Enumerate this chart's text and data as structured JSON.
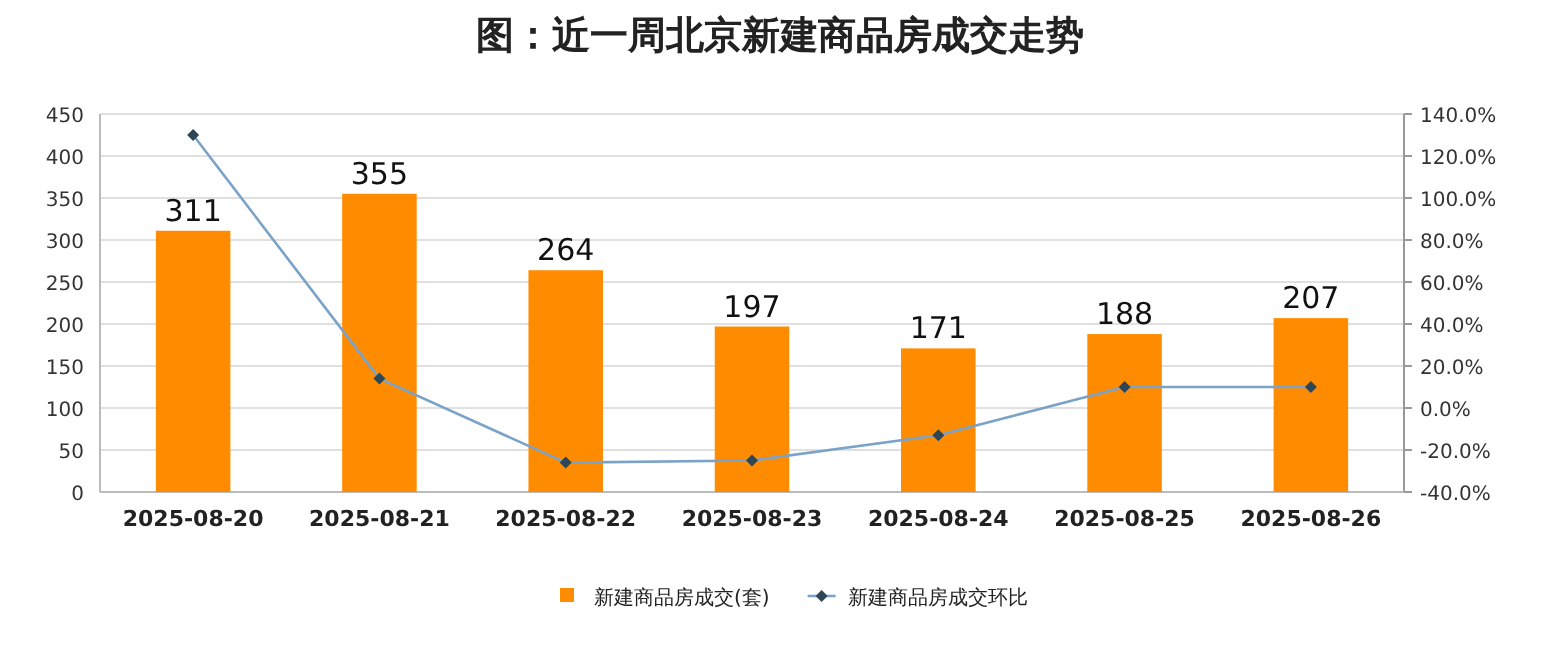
{
  "chart_data": {
    "type": "bar",
    "title": "图：近一周北京新建商品房成交走势",
    "categories": [
      "2025-08-20",
      "2025-08-21",
      "2025-08-22",
      "2025-08-23",
      "2025-08-24",
      "2025-08-25",
      "2025-08-26"
    ],
    "series": [
      {
        "name": "新建商品房成交(套)",
        "color": "#ff8c00",
        "values": [
          311,
          355,
          264,
          197,
          171,
          188,
          207
        ],
        "value_labels": [
          "311",
          "355",
          "264",
          "197",
          "171",
          "188",
          "207"
        ]
      },
      {
        "name": "新建商品房成交环比",
        "type": "line",
        "axis": "y2",
        "color": "#7ba3c8",
        "marker": "diamond",
        "values": [
          130,
          14,
          -26,
          -25,
          -13,
          10,
          10
        ]
      }
    ],
    "ylim": [
      0,
      450
    ],
    "yticks": [
      0,
      50,
      100,
      150,
      200,
      250,
      300,
      350,
      400,
      450
    ],
    "y2lim": [
      -40,
      140
    ],
    "y2ticks": [
      {
        "value": -40,
        "label": "-40.0%"
      },
      {
        "value": -20,
        "label": "-20.0%"
      },
      {
        "value": 0,
        "label": "0.0%"
      },
      {
        "value": 20,
        "label": "20.0%"
      },
      {
        "value": 40,
        "label": "40.0%"
      },
      {
        "value": 60,
        "label": "60.0%"
      },
      {
        "value": 80,
        "label": "80.0%"
      },
      {
        "value": 100,
        "label": "100.0%"
      },
      {
        "value": 120,
        "label": "120.0%"
      },
      {
        "value": 140,
        "label": "140.0%"
      }
    ],
    "grid": "y",
    "legend": "bottom"
  }
}
